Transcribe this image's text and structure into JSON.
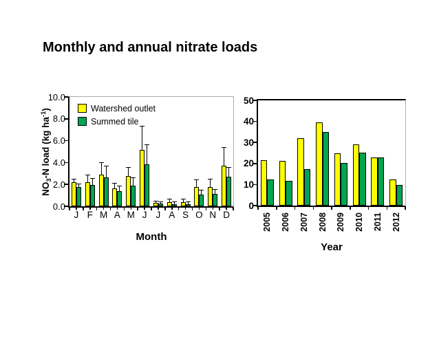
{
  "slide": {
    "title": "Monthly and annual nitrate loads"
  },
  "colors": {
    "watershed": "#FFFF00",
    "summed": "#00A551",
    "bar_outline": "#000000",
    "axis": "#000000",
    "frame_gray": "#ABABAB"
  },
  "legend": {
    "position": "top-left-inside-monthly-plot",
    "items": [
      {
        "label": "Watershed outlet",
        "series": "watershed"
      },
      {
        "label": "Summed tile",
        "series": "summed"
      }
    ]
  },
  "monthly": {
    "ylabel_pre": "NO",
    "ylabel_sub": "3",
    "ylabel_mid": "-N load (kg ha",
    "ylabel_sup": "-1",
    "ylabel_post": ")"
  },
  "chart_data": [
    {
      "id": "monthly",
      "type": "bar",
      "title": "",
      "categories": [
        "J",
        "F",
        "M",
        "A",
        "M",
        "J",
        "J",
        "A",
        "S",
        "O",
        "N",
        "D"
      ],
      "xlabel": "Month",
      "ylabel": "NO3-N load (kg ha-1)",
      "ylim": [
        0,
        10
      ],
      "ytick_values": [
        0,
        2,
        4,
        6,
        8,
        10
      ],
      "ytick_labels": [
        "0.0",
        "2.0",
        "4.0",
        "6.0",
        "8.0",
        "10.0"
      ],
      "grid": false,
      "legend_position": "upper left inside",
      "error_bars": "upper only, capped",
      "series": [
        {
          "name": "Watershed outlet",
          "color_key": "watershed",
          "values": [
            2.2,
            2.2,
            2.9,
            1.65,
            2.75,
            5.15,
            0.3,
            0.35,
            0.4,
            1.75,
            1.75,
            3.7
          ],
          "errors_up": [
            0.25,
            0.65,
            1.05,
            0.45,
            0.8,
            2.15,
            0.15,
            0.3,
            0.25,
            0.65,
            0.7,
            1.65
          ]
        },
        {
          "name": "Summed tile",
          "color_key": "summed",
          "values": [
            1.75,
            1.95,
            2.65,
            1.4,
            1.9,
            3.85,
            0.25,
            0.2,
            0.2,
            1.05,
            1.15,
            2.7
          ],
          "errors_up": [
            0.25,
            0.55,
            1.0,
            0.45,
            0.65,
            1.75,
            0.1,
            0.2,
            0.15,
            0.4,
            0.35,
            0.8
          ]
        }
      ]
    },
    {
      "id": "annual",
      "type": "bar",
      "title": "",
      "categories": [
        "2005",
        "2006",
        "2007",
        "2008",
        "2009",
        "2010",
        "2011",
        "2012"
      ],
      "xlabel": "Year",
      "ylabel": "",
      "ylim": [
        0,
        50
      ],
      "ytick_values": [
        0,
        10,
        20,
        30,
        40,
        50
      ],
      "ytick_labels": [
        "0",
        "10",
        "20",
        "30",
        "40",
        "50"
      ],
      "grid": false,
      "error_bars": "none",
      "series": [
        {
          "name": "Watershed outlet",
          "color_key": "watershed",
          "values": [
            21.5,
            21.3,
            32.0,
            39.7,
            25.0,
            29.0,
            23.0,
            12.5
          ]
        },
        {
          "name": "Summed tile",
          "color_key": "summed",
          "values": [
            12.5,
            11.8,
            17.2,
            35.0,
            20.3,
            25.2,
            23.0,
            9.8
          ]
        }
      ]
    }
  ]
}
